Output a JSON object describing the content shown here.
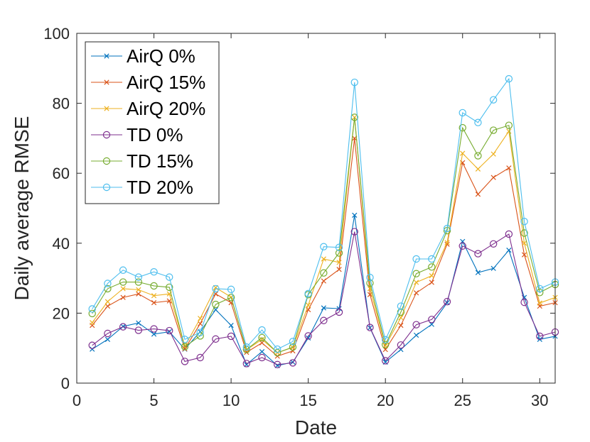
{
  "chart_data": {
    "type": "line",
    "title": "",
    "xlabel": "Date",
    "ylabel": "Daily average RMSE",
    "xlim": [
      0,
      31
    ],
    "ylim": [
      0,
      100
    ],
    "xticks": [
      0,
      5,
      10,
      15,
      20,
      25,
      30
    ],
    "yticks": [
      0,
      20,
      40,
      60,
      80,
      100
    ],
    "legend_position": "top-left",
    "x": [
      1,
      2,
      3,
      4,
      5,
      6,
      7,
      8,
      9,
      10,
      11,
      12,
      13,
      14,
      15,
      16,
      17,
      18,
      19,
      20,
      21,
      22,
      23,
      24,
      25,
      26,
      27,
      28,
      29,
      30,
      31
    ],
    "series": [
      {
        "name": "AirQ 0%",
        "marker": "x",
        "color": "#0072BD",
        "values": [
          9.7,
          12.5,
          16.2,
          17.2,
          14.0,
          14.7,
          9.7,
          14.7,
          21.0,
          16.5,
          5.3,
          9.0,
          5.0,
          6.0,
          12.9,
          21.5,
          21.3,
          48.0,
          15.8,
          6.0,
          9.6,
          13.7,
          16.8,
          23.0,
          40.5,
          31.6,
          32.8,
          38.0,
          24.5,
          12.5,
          13.4
        ]
      },
      {
        "name": "AirQ 15%",
        "marker": "x",
        "color": "#D95319",
        "values": [
          16.5,
          22.0,
          24.5,
          25.5,
          23.0,
          23.5,
          9.8,
          17.0,
          25.5,
          23.0,
          8.8,
          11.5,
          7.7,
          9.2,
          21.0,
          29.2,
          32.5,
          70.0,
          25.3,
          9.6,
          16.5,
          25.8,
          28.8,
          39.7,
          63.0,
          54.0,
          58.8,
          61.5,
          36.7,
          22.0,
          23.0
        ]
      },
      {
        "name": "AirQ 20%",
        "marker": "x",
        "color": "#EDB120",
        "values": [
          17.3,
          23.3,
          27.0,
          26.7,
          25.0,
          25.5,
          10.5,
          18.5,
          27.3,
          24.6,
          9.5,
          12.5,
          8.7,
          10.2,
          22.3,
          35.5,
          34.5,
          76.0,
          27.0,
          10.7,
          18.7,
          28.8,
          30.7,
          40.2,
          65.7,
          61.2,
          65.5,
          72.0,
          40.0,
          22.9,
          24.5
        ]
      },
      {
        "name": "TD 0%",
        "marker": "o",
        "color": "#7E2F8E",
        "values": [
          10.8,
          14.2,
          16.1,
          15.1,
          15.5,
          15.0,
          6.2,
          7.3,
          12.6,
          13.4,
          5.6,
          7.3,
          5.3,
          5.8,
          13.5,
          17.9,
          20.3,
          43.3,
          15.9,
          6.4,
          10.9,
          16.7,
          18.2,
          23.3,
          39.2,
          37.0,
          39.8,
          42.6,
          23.1,
          13.4,
          14.6
        ]
      },
      {
        "name": "TD 15%",
        "marker": "o",
        "color": "#77AC30",
        "values": [
          19.9,
          27.0,
          28.9,
          28.9,
          27.8,
          27.4,
          10.4,
          13.5,
          22.5,
          24.5,
          9.6,
          13.0,
          8.7,
          10.3,
          25.3,
          31.5,
          37.2,
          76.0,
          28.6,
          11.0,
          20.3,
          31.3,
          33.2,
          43.6,
          73.0,
          65.0,
          72.3,
          73.7,
          42.9,
          25.9,
          28.2
        ]
      },
      {
        "name": "TD 20%",
        "marker": "o",
        "color": "#4DBEEE",
        "values": [
          21.2,
          28.5,
          32.3,
          30.3,
          31.8,
          30.3,
          12.5,
          14.5,
          27.0,
          26.8,
          10.3,
          15.2,
          9.7,
          11.9,
          25.6,
          39.0,
          38.8,
          86.0,
          30.2,
          12.4,
          22.0,
          35.5,
          35.5,
          44.2,
          77.3,
          74.5,
          81.0,
          87.0,
          46.2,
          27.0,
          28.9
        ]
      }
    ]
  }
}
